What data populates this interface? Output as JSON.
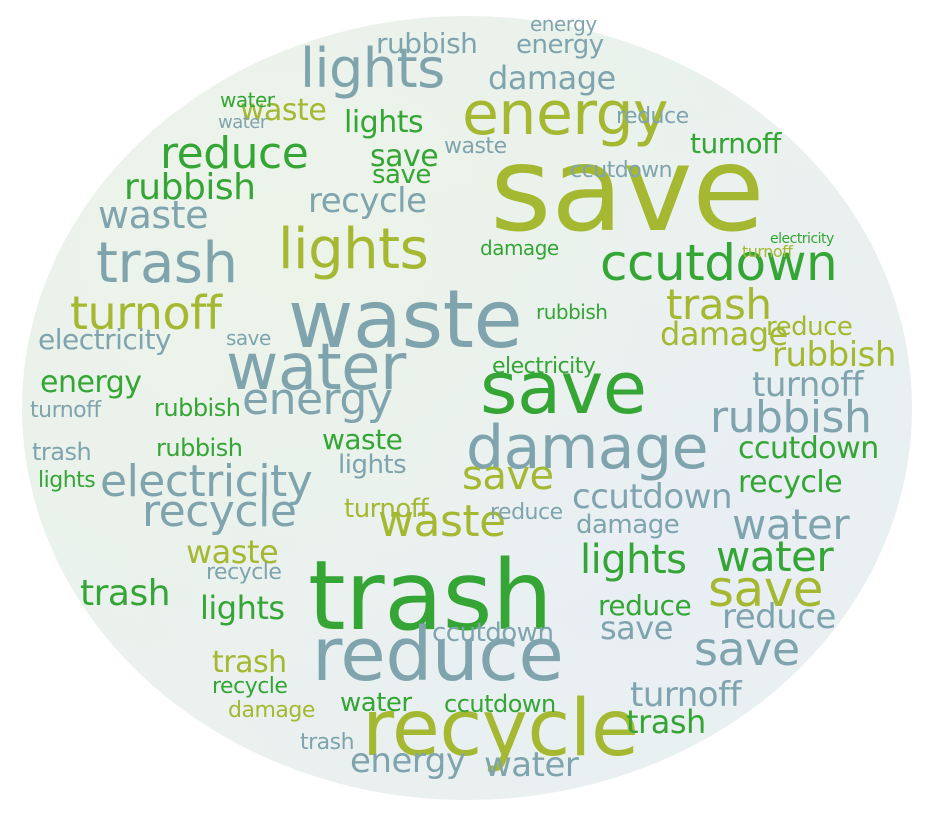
{
  "colors": {
    "background": "#ffffff",
    "blob": "#eaf1ee",
    "palette": {
      "green": "#35a535",
      "olive": "#a5b832",
      "teal": "#7fa4ad",
      "gray": "#8ea9b1"
    }
  },
  "words": [
    "save",
    "trash",
    "waste",
    "recycle",
    "reduce",
    "water",
    "damage",
    "energy",
    "lights",
    "ccutdown",
    "rubbish",
    "turnoff",
    "electricity"
  ]
}
